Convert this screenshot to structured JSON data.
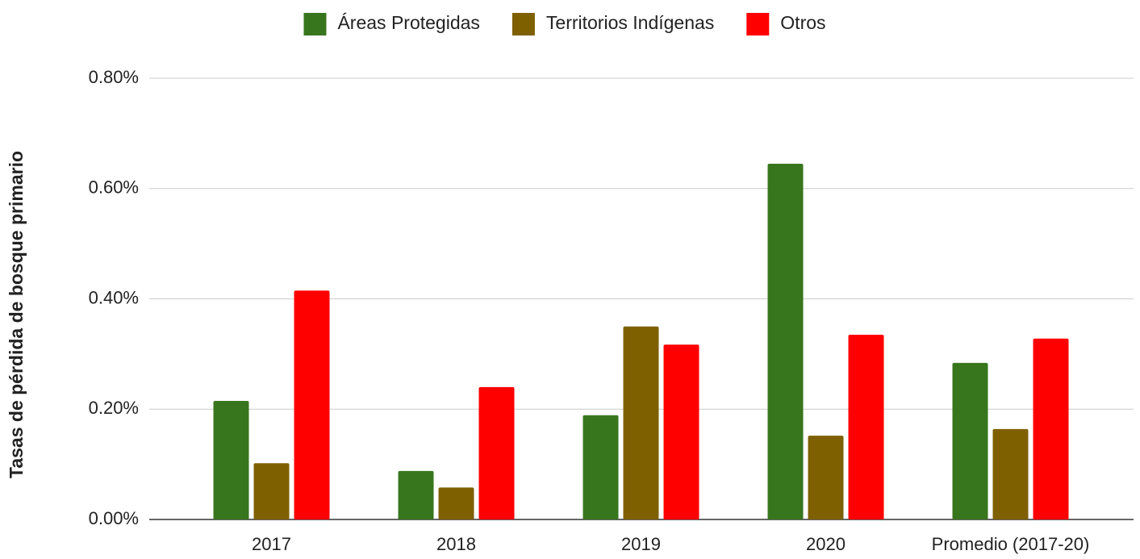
{
  "chart_data": {
    "type": "bar",
    "y_label": "Tasas de pérdida de bosque primario",
    "categories": [
      "2017",
      "2018",
      "2019",
      "2020",
      "Promedio (2017-20)"
    ],
    "series": [
      {
        "name": "Áreas Protegidas",
        "color": "#38761d",
        "values": [
          0.215,
          0.088,
          0.189,
          0.645,
          0.284
        ]
      },
      {
        "name": "Territorios Indígenas",
        "color": "#7f6000",
        "values": [
          0.102,
          0.058,
          0.35,
          0.152,
          0.164
        ]
      },
      {
        "name": "Otros",
        "color": "#ff0000",
        "values": [
          0.415,
          0.24,
          0.317,
          0.335,
          0.328
        ]
      }
    ],
    "ylim": [
      0,
      0.8
    ],
    "yticks": [
      {
        "value": 0,
        "label": "0.00%"
      },
      {
        "value": 0.2,
        "label": "0.20%"
      },
      {
        "value": 0.4,
        "label": "0.40%"
      },
      {
        "value": 0.6,
        "label": "0.60%"
      },
      {
        "value": 0.8,
        "label": "0.80%"
      }
    ],
    "grid": true,
    "legend": "top"
  }
}
